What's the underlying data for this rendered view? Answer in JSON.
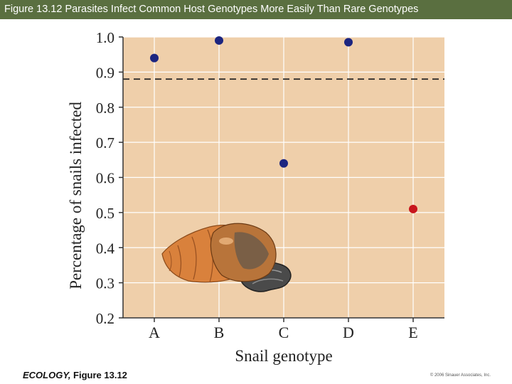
{
  "header": {
    "title": "Figure 13.12  Parasites Infect Common Host Genotypes More Easily Than Rare Genotypes"
  },
  "chart_data": {
    "type": "scatter",
    "xlabel": "Snail genotype",
    "ylabel": "Percentage of snails infected",
    "categories": [
      "A",
      "B",
      "C",
      "D",
      "E"
    ],
    "values": [
      0.94,
      0.99,
      0.64,
      0.985,
      0.51
    ],
    "point_colors": [
      "#1c2580",
      "#1c2580",
      "#1c2580",
      "#1c2580",
      "#c8161d"
    ],
    "ylim": [
      0.2,
      1.0
    ],
    "yticks": [
      "0.2",
      "0.3",
      "0.4",
      "0.5",
      "0.6",
      "0.7",
      "0.8",
      "0.9",
      "1.0"
    ],
    "reference_line": 0.88,
    "grid": true,
    "plot_background": "#efcfaa"
  },
  "footer": {
    "journal": "ECOLOGY,",
    "figure": " Figure 13.12",
    "copyright": "© 2006 Sinauer Associates, Inc."
  }
}
